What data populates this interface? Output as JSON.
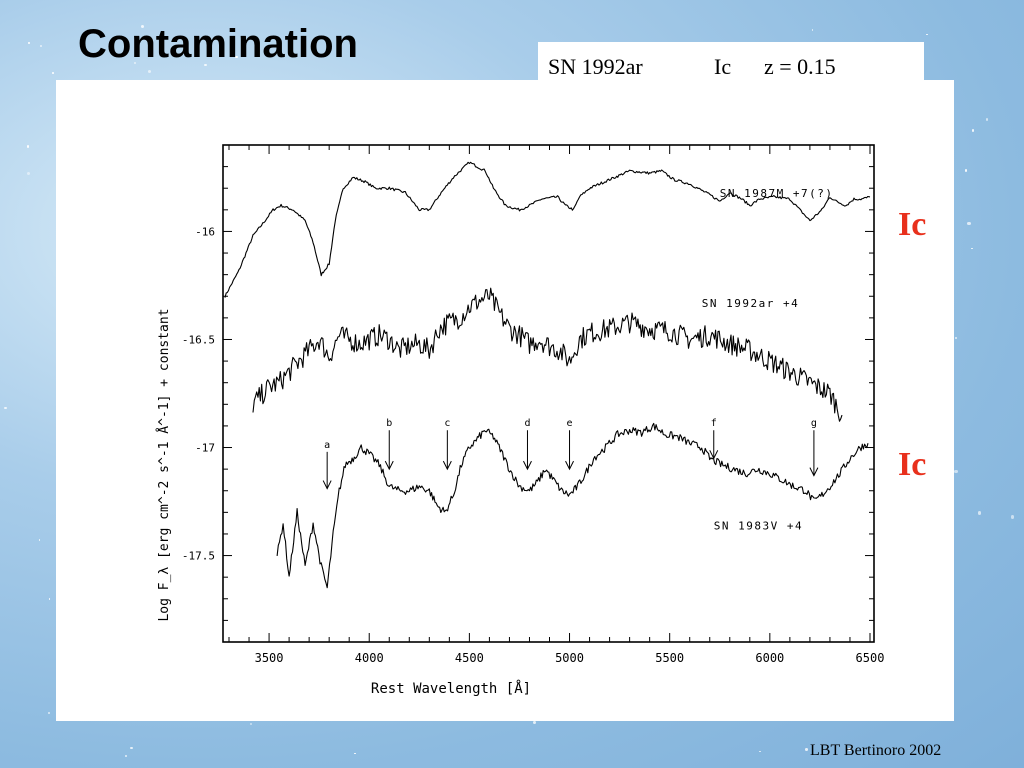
{
  "slide": {
    "title": "Contamination",
    "info": {
      "name": "SN 1992ar",
      "type": "Ic",
      "redshift": "z = 0.15"
    },
    "type_labels": [
      "Ic",
      "Ic"
    ],
    "footer": "LBT Bertinoro 2002"
  },
  "chart_data": {
    "type": "line",
    "xlabel": "Rest Wavelength [Å]",
    "ylabel": "Log F_λ [erg cm^-2 s^-1 Å^-1] + constant",
    "xlim": [
      3270,
      6520
    ],
    "ylim": [
      -17.9,
      -15.6
    ],
    "xticks": [
      3500,
      4000,
      4500,
      5000,
      5500,
      6000,
      6500
    ],
    "yticks": [
      -16,
      -16.5,
      -17,
      -17.5
    ],
    "ytick_labels": [
      "-16",
      "-16.5",
      "-17",
      "-17.5"
    ],
    "series": [
      {
        "name": "SN 1987M +7(?)",
        "noise": 0.006,
        "x": [
          3280,
          3350,
          3420,
          3480,
          3520,
          3560,
          3620,
          3680,
          3720,
          3760,
          3800,
          3830,
          3870,
          3920,
          3980,
          4030,
          4100,
          4180,
          4250,
          4300,
          4360,
          4420,
          4500,
          4580,
          4620,
          4680,
          4750,
          4800,
          4860,
          4940,
          4980,
          5020,
          5050,
          5100,
          5200,
          5300,
          5400,
          5460,
          5520,
          5600,
          5700,
          5750,
          5800,
          5860,
          5900,
          5950,
          6020,
          6100,
          6150,
          6200,
          6260,
          6300,
          6330,
          6380,
          6420,
          6460,
          6500
        ],
        "y": [
          -16.3,
          -16.18,
          -16.02,
          -15.95,
          -15.9,
          -15.88,
          -15.9,
          -15.95,
          -16.05,
          -16.2,
          -16.15,
          -15.95,
          -15.8,
          -15.75,
          -15.77,
          -15.8,
          -15.8,
          -15.82,
          -15.9,
          -15.9,
          -15.82,
          -15.75,
          -15.68,
          -15.72,
          -15.8,
          -15.88,
          -15.9,
          -15.88,
          -15.85,
          -15.84,
          -15.88,
          -15.9,
          -15.84,
          -15.8,
          -15.76,
          -15.72,
          -15.73,
          -15.72,
          -15.76,
          -15.78,
          -15.83,
          -15.86,
          -15.82,
          -15.85,
          -15.88,
          -15.85,
          -15.84,
          -15.85,
          -15.9,
          -15.95,
          -15.9,
          -15.84,
          -15.86,
          -15.88,
          -15.85,
          -15.85,
          -15.84
        ],
        "label": {
          "x": 5750,
          "y": -15.84
        }
      },
      {
        "name": "SN 1992ar +4",
        "noise": 0.05,
        "x": [
          3420,
          3500,
          3550,
          3600,
          3650,
          3700,
          3750,
          3800,
          3850,
          3900,
          3950,
          4000,
          4050,
          4100,
          4150,
          4200,
          4250,
          4300,
          4350,
          4400,
          4450,
          4500,
          4550,
          4600,
          4650,
          4700,
          4750,
          4800,
          4850,
          4900,
          4950,
          5000,
          5050,
          5100,
          5200,
          5300,
          5400,
          5500,
          5600,
          5700,
          5800,
          5900,
          6000,
          6100,
          6200,
          6300,
          6360
        ],
        "y": [
          -16.8,
          -16.72,
          -16.7,
          -16.65,
          -16.6,
          -16.55,
          -16.5,
          -16.58,
          -16.48,
          -16.5,
          -16.52,
          -16.5,
          -16.48,
          -16.5,
          -16.55,
          -16.53,
          -16.52,
          -16.55,
          -16.45,
          -16.42,
          -16.4,
          -16.35,
          -16.32,
          -16.3,
          -16.38,
          -16.45,
          -16.48,
          -16.52,
          -16.5,
          -16.53,
          -16.55,
          -16.6,
          -16.5,
          -16.47,
          -16.45,
          -16.42,
          -16.45,
          -16.46,
          -16.5,
          -16.48,
          -16.52,
          -16.55,
          -16.6,
          -16.65,
          -16.7,
          -16.75,
          -16.85
        ],
        "label": {
          "x": 5660,
          "y": -16.35
        }
      },
      {
        "name": "SN 1983V +4",
        "noise": 0.018,
        "x": [
          3540,
          3570,
          3600,
          3640,
          3680,
          3720,
          3760,
          3790,
          3820,
          3850,
          3880,
          3920,
          3960,
          4000,
          4050,
          4100,
          4150,
          4200,
          4250,
          4300,
          4340,
          4380,
          4420,
          4460,
          4500,
          4540,
          4580,
          4620,
          4660,
          4700,
          4750,
          4800,
          4840,
          4880,
          4920,
          4960,
          5000,
          5040,
          5080,
          5120,
          5180,
          5240,
          5300,
          5360,
          5420,
          5480,
          5540,
          5600,
          5660,
          5700,
          5760,
          5820,
          5880,
          5940,
          6000,
          6060,
          6120,
          6180,
          6220,
          6260,
          6300,
          6350,
          6400,
          6450,
          6490
        ],
        "y": [
          -17.5,
          -17.35,
          -17.6,
          -17.3,
          -17.55,
          -17.35,
          -17.55,
          -17.65,
          -17.4,
          -17.2,
          -17.08,
          -17.05,
          -17.0,
          -17.03,
          -17.08,
          -17.18,
          -17.2,
          -17.2,
          -17.18,
          -17.2,
          -17.27,
          -17.3,
          -17.22,
          -17.08,
          -17.0,
          -16.96,
          -16.92,
          -16.95,
          -17.02,
          -17.1,
          -17.18,
          -17.2,
          -17.16,
          -17.1,
          -17.15,
          -17.2,
          -17.22,
          -17.18,
          -17.12,
          -17.05,
          -17.0,
          -16.94,
          -16.92,
          -16.93,
          -16.9,
          -16.94,
          -16.95,
          -16.98,
          -17.0,
          -17.05,
          -17.08,
          -17.1,
          -17.12,
          -17.1,
          -17.12,
          -17.15,
          -17.18,
          -17.2,
          -17.25,
          -17.22,
          -17.18,
          -17.12,
          -17.05,
          -17.0,
          -16.98
        ],
        "label": {
          "x": 5720,
          "y": -17.38
        }
      }
    ],
    "annotations": [
      {
        "text": "a",
        "x": 3790,
        "y_top": -17.02,
        "y_tip": -17.19
      },
      {
        "text": "b",
        "x": 4100,
        "y_top": -16.92,
        "y_tip": -17.1
      },
      {
        "text": "c",
        "x": 4390,
        "y_top": -16.92,
        "y_tip": -17.1
      },
      {
        "text": "d",
        "x": 4790,
        "y_top": -16.92,
        "y_tip": -17.1
      },
      {
        "text": "e",
        "x": 5000,
        "y_top": -16.92,
        "y_tip": -17.1
      },
      {
        "text": "f",
        "x": 5720,
        "y_top": -16.92,
        "y_tip": -17.05
      },
      {
        "text": "g",
        "x": 6220,
        "y_top": -16.92,
        "y_tip": -17.13
      }
    ]
  }
}
